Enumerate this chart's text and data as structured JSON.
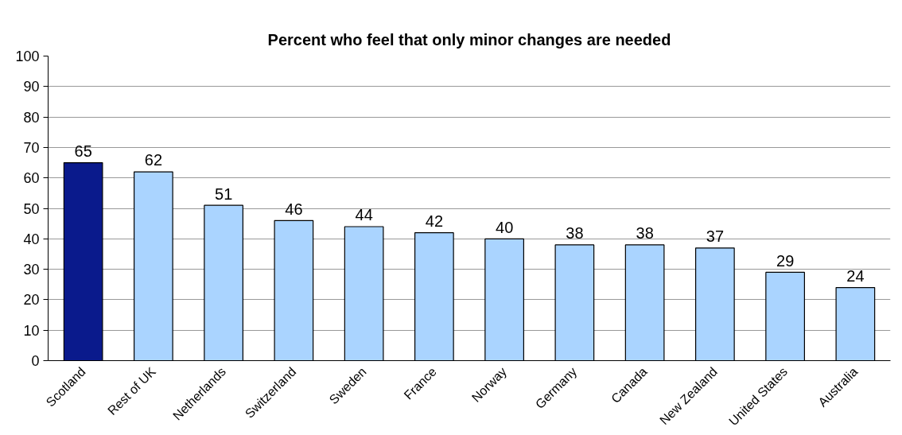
{
  "chart_data": {
    "type": "bar",
    "title": "Percent who feel that only minor changes are needed",
    "categories": [
      "Scotland",
      "Rest of UK",
      "Netherlands",
      "Switzerland",
      "Sweden",
      "France",
      "Norway",
      "Germany",
      "Canada",
      "New Zealand",
      "United States",
      "Australia"
    ],
    "values": [
      65,
      62,
      51,
      46,
      44,
      42,
      40,
      38,
      38,
      37,
      29,
      24
    ],
    "colors": [
      "#0a1a8c",
      "#aad4ff",
      "#aad4ff",
      "#aad4ff",
      "#aad4ff",
      "#aad4ff",
      "#aad4ff",
      "#aad4ff",
      "#aad4ff",
      "#aad4ff",
      "#aad4ff",
      "#aad4ff"
    ],
    "ylim": [
      0,
      100
    ],
    "yticks": [
      0,
      10,
      20,
      30,
      40,
      50,
      60,
      70,
      80,
      90,
      100
    ],
    "grid": "y",
    "data_labels": true
  }
}
